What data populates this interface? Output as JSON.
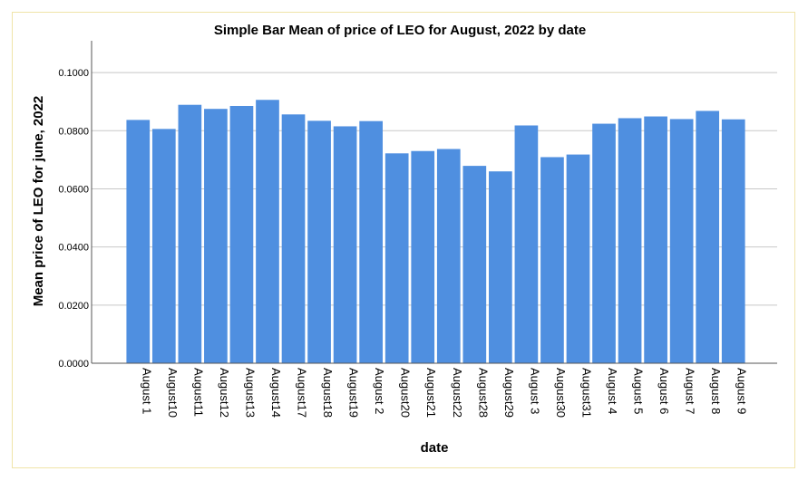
{
  "chart_data": {
    "type": "bar",
    "title": "Simple Bar Mean of price of LEO for August, 2022 by date",
    "xlabel": "date",
    "ylabel": "Mean price of LEO for june, 2022",
    "ylim": [
      0,
      0.11
    ],
    "yticks": [
      "0.0000",
      "0.0200",
      "0.0400",
      "0.0600",
      "0.0800",
      "0.1000"
    ],
    "ytick_values": [
      0,
      0.02,
      0.04,
      0.06,
      0.08,
      0.1
    ],
    "grid": true,
    "bar_color": "#4f8fe0",
    "categories": [
      "August 1",
      "August10",
      "August11",
      "August12",
      "August13",
      "August14",
      "August17",
      "August18",
      "August19",
      "August 2",
      "August20",
      "August21",
      "August22",
      "August28",
      "August29",
      "August 3",
      "August30",
      "August31",
      "August 4",
      "August 5",
      "August 6",
      "August 7",
      "August 8",
      "August 9"
    ],
    "values": [
      0.0837,
      0.0806,
      0.0889,
      0.0875,
      0.0885,
      0.0906,
      0.0856,
      0.0834,
      0.0815,
      0.0833,
      0.0722,
      0.073,
      0.0737,
      0.0679,
      0.066,
      0.0818,
      0.0709,
      0.0718,
      0.0824,
      0.0843,
      0.0849,
      0.084,
      0.0868,
      0.0839
    ]
  }
}
